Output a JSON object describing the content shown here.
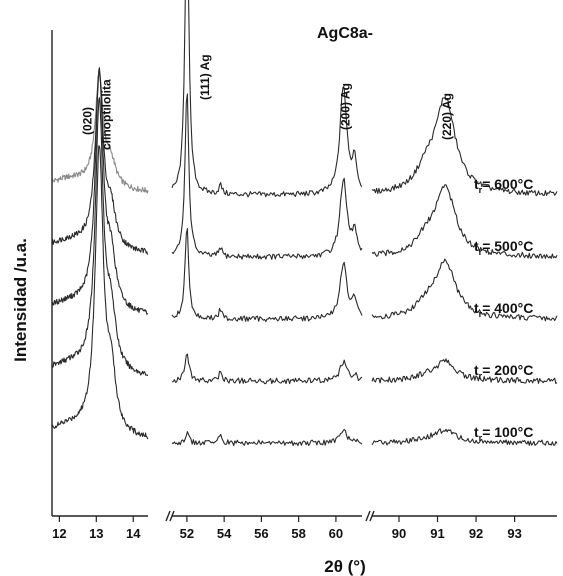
{
  "chart_data": {
    "type": "line",
    "title": "AgC8a-",
    "xlabel": "2θ (°)",
    "ylabel": "Intensidad /u.a.",
    "axis_breaks": true,
    "segments": [
      {
        "xlim": [
          11.8,
          14.4
        ],
        "ticks": [
          12,
          13,
          14
        ]
      },
      {
        "xlim": [
          51.2,
          61.4
        ],
        "ticks": [
          52,
          54,
          56,
          58,
          60
        ]
      },
      {
        "xlim": [
          89.3,
          94.1
        ],
        "ticks": [
          90,
          91,
          92,
          93
        ]
      }
    ],
    "peak_annotations": [
      {
        "label": "(020)",
        "x": 13.0
      },
      {
        "label": "clinoptilolita",
        "x": 13.0
      },
      {
        "label": "(111) Ag",
        "x": 52.0
      },
      {
        "label": "(200) Ag",
        "x": 60.4
      },
      {
        "label": "(220) Ag",
        "x": 91.2
      }
    ],
    "temperature_prefix": "t",
    "temperature_subscript": "r",
    "series": [
      {
        "name": "= 600°C",
        "baseline": 100,
        "zeolite_peak": 35,
        "ag111": 100,
        "ag200": 35,
        "ag220": 30
      },
      {
        "name": "= 500°C",
        "baseline": 80,
        "zeolite_peak": 55,
        "ag111": 55,
        "ag200": 25,
        "ag220": 22
      },
      {
        "name": "= 400°C",
        "baseline": 60,
        "zeolite_peak": 75,
        "ag111": 30,
        "ag200": 18,
        "ag220": 18
      },
      {
        "name": "= 200°C",
        "baseline": 40,
        "zeolite_peak": 85,
        "ag111": 10,
        "ag200": 6,
        "ag220": 6
      },
      {
        "name": "= 100°C",
        "baseline": 20,
        "zeolite_peak": 90,
        "ag111": 3,
        "ag200": 4,
        "ag220": 4
      }
    ]
  }
}
